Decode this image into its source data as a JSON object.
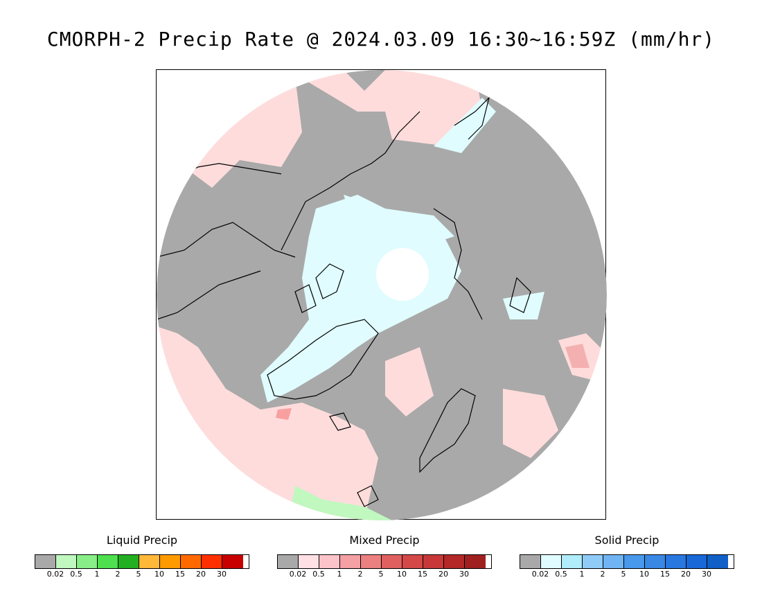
{
  "title": "CMORPH-2 Precip Rate @ 2024.03.09 16:30~16:59Z (mm/hr)",
  "map": {
    "projection": "polar stereographic (north pole)",
    "colors": {
      "no_precip": "#a9a9a9",
      "mixed_light": "#ffdcdc",
      "mixed_mod": "#f8a0a0",
      "solid_light": "#e0fcff",
      "solid_mod": "#a8e4fa",
      "liquid_light": "#c0f8c0",
      "liquid_mod": "#88ee88",
      "coast": "#000000",
      "pole_blank": "#ffffff"
    }
  },
  "legends": [
    {
      "title": "Liquid Precip",
      "colors": [
        "#a9a9a9",
        "#c0f8c0",
        "#88ee88",
        "#4ee04e",
        "#22b022",
        "#ffb838",
        "#ff9a00",
        "#ff6a00",
        "#ff3000",
        "#c80000"
      ],
      "ticks": [
        "0.02",
        "0.5",
        "1",
        "2",
        "5",
        "10",
        "15",
        "20",
        "30"
      ]
    },
    {
      "title": "Mixed Precip",
      "colors": [
        "#a9a9a9",
        "#ffe0e4",
        "#fcc4c8",
        "#f4a0a4",
        "#ec8080",
        "#e06060",
        "#d44848",
        "#c83838",
        "#b42828",
        "#a02020"
      ],
      "ticks": [
        "0.02",
        "0.5",
        "1",
        "2",
        "5",
        "10",
        "15",
        "20",
        "30"
      ]
    },
    {
      "title": "Solid Precip",
      "colors": [
        "#a9a9a9",
        "#e0fcff",
        "#b0ecfa",
        "#90ccf8",
        "#70b4f4",
        "#4898ec",
        "#3888e4",
        "#2878e0",
        "#1868d8",
        "#1060c8"
      ],
      "ticks": [
        "0.02",
        "0.5",
        "1",
        "2",
        "5",
        "10",
        "15",
        "20",
        "30"
      ]
    }
  ]
}
